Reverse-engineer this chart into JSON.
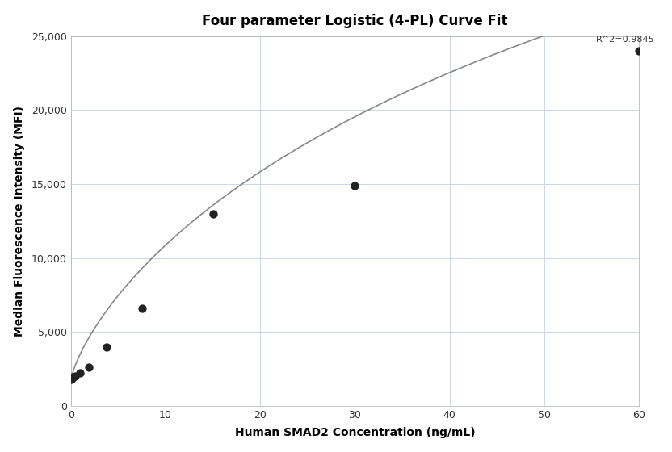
{
  "title": "Four parameter Logistic (4-PL) Curve Fit",
  "xlabel": "Human SMAD2 Concentration (ng/mL)",
  "ylabel": "Median Fluorescence Intensity (MFI)",
  "scatter_x": [
    0.0,
    0.117,
    0.234,
    0.469,
    0.938,
    1.875,
    3.75,
    7.5,
    15.0,
    30.0,
    60.0
  ],
  "scatter_y": [
    1800,
    1850,
    1950,
    2050,
    2250,
    2600,
    4000,
    6600,
    13000,
    14900,
    24000
  ],
  "xlim": [
    0,
    60
  ],
  "ylim": [
    0,
    25000
  ],
  "r_squared": "R^2=0.9845",
  "curve_color": "#888888",
  "scatter_color": "#222222",
  "background_color": "#ffffff",
  "grid_color": "#c8d8e8",
  "4pl_A": 1700,
  "4pl_B": 0.75,
  "4pl_C": 120.0,
  "4pl_D": 70000
}
